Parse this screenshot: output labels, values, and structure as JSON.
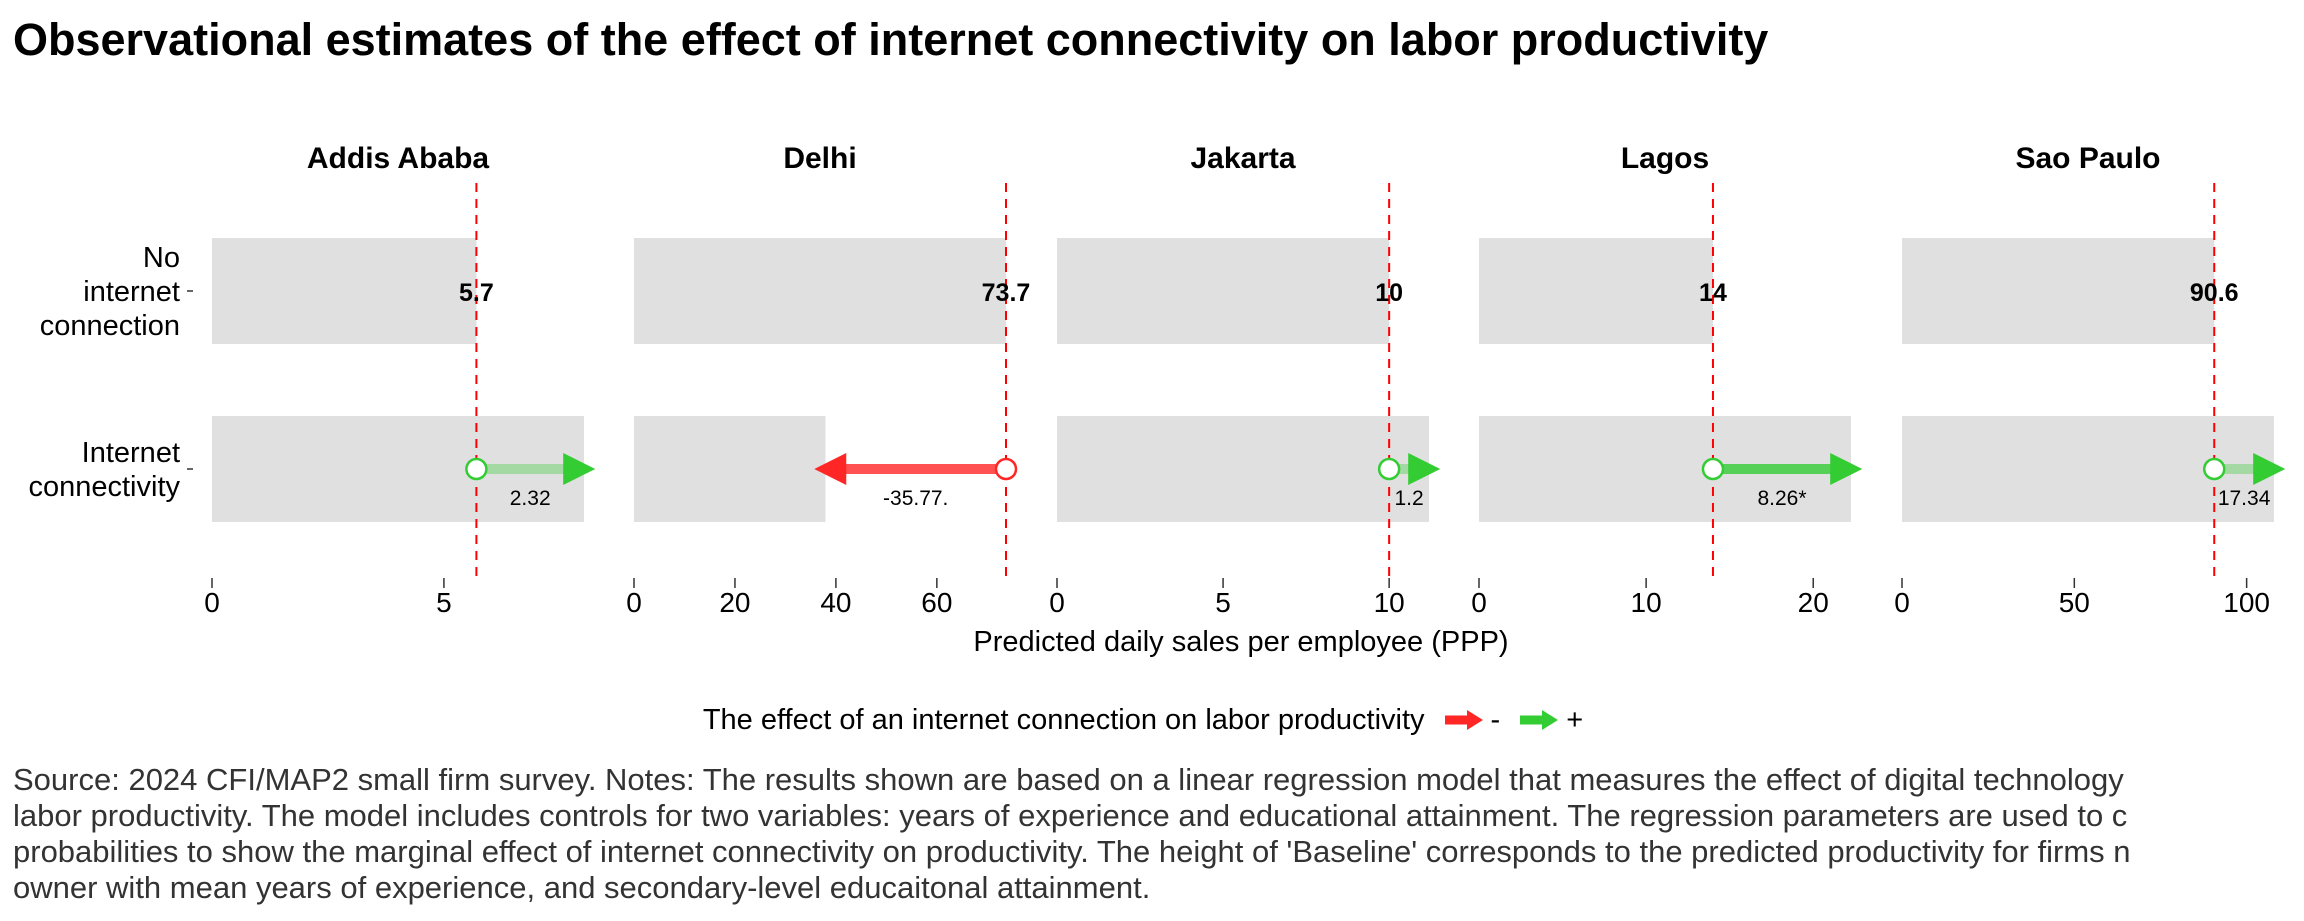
{
  "title": "Observational estimates of the effect of internet connectivity on labor productivity",
  "colors": {
    "bar_fill": "#e0e0e0",
    "positive": "#33cc33",
    "negative": "#ff2626",
    "reference_line": "#ff0000"
  },
  "chart_data": {
    "type": "bar",
    "facets": [
      "Addis Ababa",
      "Delhi",
      "Jakarta",
      "Lagos",
      "Sao Paulo"
    ],
    "categories": [
      "No\ninternet\nconnection",
      "Internet\nconnectivity"
    ],
    "xlabel": "Predicted daily sales per employee (PPP)",
    "panels": [
      {
        "name": "Addis Ababa",
        "baseline": 5.7,
        "baseline_label": "5.7",
        "effect": 2.32,
        "effect_label": "2.32",
        "significant": false,
        "xlim": [
          0,
          8.02
        ],
        "ticks": [
          0,
          5
        ]
      },
      {
        "name": "Delhi",
        "baseline": 73.7,
        "baseline_label": "73.7",
        "effect": -35.77,
        "effect_label": "-35.77.",
        "significant": true,
        "xlim": [
          0,
          73.7
        ],
        "ticks": [
          0,
          20,
          40,
          60
        ]
      },
      {
        "name": "Jakarta",
        "baseline": 10,
        "baseline_label": "10",
        "effect": 1.2,
        "effect_label": "1.2",
        "significant": false,
        "xlim": [
          0,
          11.2
        ],
        "ticks": [
          0,
          5,
          10
        ]
      },
      {
        "name": "Lagos",
        "baseline": 14,
        "baseline_label": "14",
        "effect": 8.26,
        "effect_label": "8.26*",
        "significant": true,
        "xlim": [
          0,
          22.26
        ],
        "ticks": [
          0,
          10,
          20
        ]
      },
      {
        "name": "Sao Paulo",
        "baseline": 90.6,
        "baseline_label": "90.6",
        "effect": 17.34,
        "effect_label": "17.34",
        "significant": false,
        "xlim": [
          0,
          107.94
        ],
        "ticks": [
          0,
          50,
          100
        ]
      }
    ],
    "legend": {
      "title": "The effect of an internet connection on labor productivity",
      "items": [
        {
          "label": "-",
          "color": "#ff2626"
        },
        {
          "label": "+",
          "color": "#33cc33"
        }
      ]
    }
  },
  "caption_lines": [
    "Source: 2024 CFI/MAP2 small firm survey. Notes: The results shown are based on a linear regression model that measures the effect of digital technology",
    "labor productivity. The model includes controls for two variables: years of experience and educational attainment. The regression parameters are used to c",
    "probabilities to show the marginal effect of internet connectivity on productivity. The height of 'Baseline' corresponds to the predicted productivity for firms n",
    "owner with mean years of experience, and secondary-level educaitonal attainment."
  ]
}
